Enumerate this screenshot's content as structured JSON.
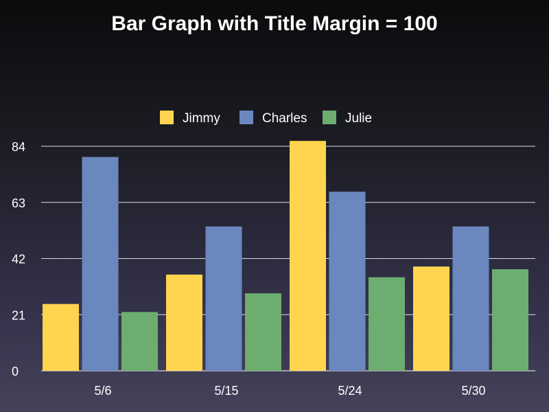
{
  "chart_data": {
    "type": "bar",
    "title": "Bar Graph with Title Margin = 100",
    "categories": [
      "5/6",
      "5/15",
      "5/24",
      "5/30"
    ],
    "series": [
      {
        "name": "Jimmy",
        "color": "#FFD54F",
        "values": [
          25,
          36,
          86,
          39
        ]
      },
      {
        "name": "Charles",
        "color": "#6A87BE",
        "values": [
          80,
          54,
          67,
          54
        ]
      },
      {
        "name": "Julie",
        "color": "#6DAD6F",
        "values": [
          22,
          29,
          35,
          38
        ]
      }
    ],
    "yticks": [
      0,
      21,
      42,
      63,
      84
    ],
    "ylim": [
      0,
      84
    ],
    "grid": true,
    "legend_position": "top-center",
    "colors": {
      "grid": "#ffffff",
      "text": "#ffffff"
    }
  }
}
